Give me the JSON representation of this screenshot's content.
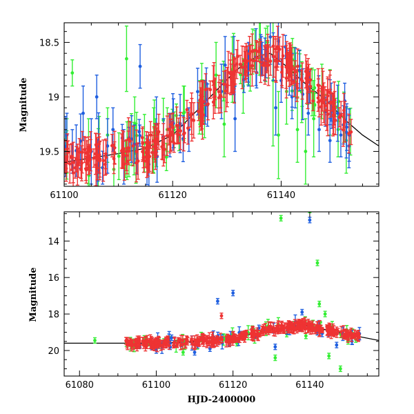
{
  "chart_data": [
    {
      "type": "scatter",
      "panel": "top",
      "xlabel": "",
      "ylabel": "Magnitude",
      "xlim": [
        61100,
        61158
      ],
      "ylim": [
        19.82,
        18.32
      ],
      "y_inverted": true,
      "xticks_major": [
        61100,
        61120,
        61140
      ],
      "xticks_minor_step": 5,
      "yticks_major": [
        18.5,
        19,
        19.5
      ],
      "yticks_minor_step": 0.1,
      "xtick_labels": [
        "61100",
        "61120",
        "61140"
      ],
      "ytick_labels": [
        "18.5",
        "19",
        "19.5"
      ],
      "model_curve": {
        "color": "#000000",
        "points": [
          [
            61100,
            19.6
          ],
          [
            61105,
            19.56
          ],
          [
            61110,
            19.52
          ],
          [
            61115,
            19.47
          ],
          [
            61120,
            19.35
          ],
          [
            61125,
            19.1
          ],
          [
            61130,
            18.84
          ],
          [
            61133,
            18.7
          ],
          [
            61136,
            18.62
          ],
          [
            61138,
            18.6
          ],
          [
            61141,
            18.72
          ],
          [
            61144,
            18.86
          ],
          [
            61148,
            19.02
          ],
          [
            61152,
            19.22
          ],
          [
            61155,
            19.35
          ],
          [
            61158,
            19.45
          ]
        ]
      },
      "series": [
        {
          "name": "green",
          "color": "#33ee33",
          "sample": [
            [
              61100.5,
              19.45,
              0.25
            ],
            [
              61101.5,
              18.78,
              0.12
            ],
            [
              61104.5,
              19.5,
              0.3
            ],
            [
              61108,
              19.35,
              0.25
            ],
            [
              61111.5,
              18.65,
              0.3
            ],
            [
              61113,
              19.25,
              0.25
            ],
            [
              61116.5,
              19.4,
              0.3
            ],
            [
              61119,
              19.3,
              0.2
            ],
            [
              61122,
              19.15,
              0.25
            ],
            [
              61125,
              19.05,
              0.2
            ],
            [
              61128,
              18.8,
              0.3
            ],
            [
              61129.5,
              19.25,
              0.3
            ],
            [
              61131,
              18.75,
              0.3
            ],
            [
              61133,
              18.9,
              0.25
            ],
            [
              61136,
              18.55,
              0.25
            ],
            [
              61137.5,
              18.5,
              0.15
            ],
            [
              61138.5,
              18.85,
              0.6
            ],
            [
              61139.5,
              19.35,
              0.4
            ],
            [
              61141,
              18.95,
              0.3
            ],
            [
              61143,
              19.3,
              0.3
            ],
            [
              61144.5,
              19.5,
              0.3
            ],
            [
              61146,
              19.2,
              0.35
            ],
            [
              61147.5,
              18.95,
              0.25
            ],
            [
              61149,
              19.05,
              0.3
            ],
            [
              61150.5,
              19.3,
              0.25
            ],
            [
              61152,
              19.4,
              0.3
            ]
          ]
        },
        {
          "name": "blue",
          "color": "#1f5fe0",
          "sample": [
            [
              61100.5,
              19.35,
              0.2
            ],
            [
              61101.5,
              19.5,
              0.2
            ],
            [
              61103.5,
              19.15,
              0.25
            ],
            [
              61105,
              19.5,
              0.3
            ],
            [
              61106,
              19.0,
              0.2
            ],
            [
              61108,
              19.45,
              0.25
            ],
            [
              61109,
              19.3,
              0.2
            ],
            [
              61111,
              19.55,
              0.25
            ],
            [
              61114,
              18.72,
              0.2
            ],
            [
              61117,
              19.25,
              0.25
            ],
            [
              61119.5,
              19.35,
              0.2
            ],
            [
              61123,
              19.3,
              0.2
            ],
            [
              61126,
              19.05,
              0.2
            ],
            [
              61129,
              18.95,
              0.25
            ],
            [
              61131.5,
              19.2,
              0.3
            ],
            [
              61134,
              18.7,
              0.2
            ],
            [
              61136.5,
              18.65,
              0.15
            ],
            [
              61138,
              18.45,
              0.25
            ],
            [
              61139,
              19.1,
              0.25
            ],
            [
              61140,
              18.85,
              0.2
            ],
            [
              61142,
              19.0,
              0.2
            ],
            [
              61145,
              19.15,
              0.2
            ],
            [
              61147,
              19.3,
              0.2
            ],
            [
              61149,
              19.4,
              0.2
            ],
            [
              61151,
              19.35,
              0.2
            ],
            [
              61152.5,
              19.45,
              0.2
            ]
          ]
        },
        {
          "name": "red",
          "color": "#ee3333",
          "sample": "dense sampling along the model curve from 61100 to 61153 with errors 0.1-0.2"
        }
      ]
    },
    {
      "type": "scatter",
      "panel": "bottom",
      "xlabel": "HJD-2400000",
      "ylabel": "Magnitude",
      "xlim": [
        61076,
        61158
      ],
      "ylim": [
        21.4,
        12.4
      ],
      "y_inverted": true,
      "xticks_major": [
        61080,
        61100,
        61120,
        61140
      ],
      "xticks_minor_step": 5,
      "yticks_major": [
        14,
        16,
        18,
        20
      ],
      "yticks_minor_step": 0.5,
      "xtick_labels": [
        "61080",
        "61100",
        "61120",
        "61140"
      ],
      "ytick_labels": [
        "14",
        "16",
        "18",
        "20"
      ],
      "model_curve": {
        "color": "#000000",
        "points": [
          [
            61076,
            19.6
          ],
          [
            61090,
            19.6
          ],
          [
            61100,
            19.6
          ],
          [
            61110,
            19.52
          ],
          [
            61120,
            19.35
          ],
          [
            61130,
            18.84
          ],
          [
            61138,
            18.6
          ],
          [
            61144,
            18.86
          ],
          [
            61150,
            19.12
          ],
          [
            61158,
            19.45
          ]
        ]
      },
      "series": [
        {
          "name": "green",
          "color": "#33ee33",
          "sample": [
            [
              61084,
              19.45
            ],
            [
              61098,
              19.6
            ],
            [
              61102,
              19.5
            ],
            [
              61107,
              20.1
            ],
            [
              61112,
              19.2
            ],
            [
              61118,
              19.3
            ],
            [
              61121,
              19.6
            ],
            [
              61125,
              18.8
            ],
            [
              61127,
              19.05
            ],
            [
              61131,
              20.4
            ],
            [
              61132.5,
              12.75
            ],
            [
              61134,
              19.1
            ],
            [
              61136,
              18.55
            ],
            [
              61139,
              19.2
            ],
            [
              61140,
              12.3
            ],
            [
              61142,
              15.2
            ],
            [
              61142.5,
              17.45
            ],
            [
              61144,
              18.0
            ],
            [
              61145,
              20.3
            ],
            [
              61146,
              19.0
            ],
            [
              61148,
              21.0
            ],
            [
              61150,
              19.5
            ],
            [
              61152,
              19.4
            ]
          ]
        },
        {
          "name": "blue",
          "color": "#1f5fe0",
          "sample": [
            [
              61100,
              20.0
            ],
            [
              61104,
              19.3
            ],
            [
              61110,
              20.1
            ],
            [
              61114,
              19.9
            ],
            [
              61116,
              17.3
            ],
            [
              61119,
              19.6
            ],
            [
              61120,
              16.85
            ],
            [
              61122,
              19.1
            ],
            [
              61126,
              19.2
            ],
            [
              61131,
              19.8
            ],
            [
              61136,
              18.7
            ],
            [
              61138,
              17.9
            ],
            [
              61140,
              12.85
            ],
            [
              61142,
              19.0
            ],
            [
              61147,
              19.7
            ],
            [
              61151,
              19.5
            ]
          ]
        },
        {
          "name": "red",
          "color": "#ee3333",
          "sample": "dense sampling along the model curve from 61092 to 61153 with errors 0.1-0.3; outlier at 61117, 18.1"
        }
      ]
    }
  ]
}
